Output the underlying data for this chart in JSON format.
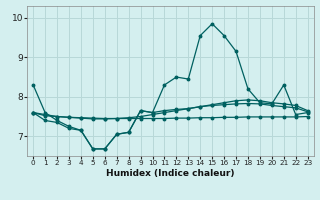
{
  "xlabel": "Humidex (Indice chaleur)",
  "bg_color": "#d4efef",
  "line_color": "#006060",
  "grid_color": "#b8d8d8",
  "xlim": [
    -0.5,
    23.5
  ],
  "ylim": [
    6.5,
    10.3
  ],
  "yticks": [
    7,
    8,
    9,
    10
  ],
  "xticks": [
    0,
    1,
    2,
    3,
    4,
    5,
    6,
    7,
    8,
    9,
    10,
    11,
    12,
    13,
    14,
    15,
    16,
    17,
    18,
    19,
    20,
    21,
    22,
    23
  ],
  "series": [
    {
      "x": [
        0,
        1,
        2,
        3,
        4,
        5,
        6,
        7,
        8,
        9,
        10,
        11,
        12,
        13,
        14,
        15,
        16,
        17,
        18,
        19,
        20,
        21,
        22,
        23
      ],
      "y": [
        8.3,
        7.6,
        7.4,
        7.25,
        7.15,
        6.68,
        6.68,
        7.05,
        7.1,
        7.65,
        7.6,
        8.3,
        8.5,
        8.45,
        9.55,
        9.85,
        9.55,
        9.15,
        8.2,
        7.85,
        7.82,
        8.3,
        7.55,
        7.6
      ]
    },
    {
      "x": [
        0,
        1,
        2,
        3,
        4,
        5,
        6,
        7,
        8,
        9,
        10,
        11,
        12,
        13,
        14,
        15,
        16,
        17,
        18,
        19,
        20,
        21,
        22,
        23
      ],
      "y": [
        7.6,
        7.55,
        7.5,
        7.48,
        7.46,
        7.44,
        7.44,
        7.45,
        7.47,
        7.5,
        7.55,
        7.6,
        7.65,
        7.7,
        7.75,
        7.8,
        7.85,
        7.9,
        7.92,
        7.9,
        7.85,
        7.82,
        7.78,
        7.65
      ]
    },
    {
      "x": [
        0,
        1,
        2,
        3,
        4,
        5,
        6,
        7,
        8,
        9,
        10,
        11,
        12,
        13,
        14,
        15,
        16,
        17,
        18,
        19,
        20,
        21,
        22,
        23
      ],
      "y": [
        7.6,
        7.52,
        7.5,
        7.48,
        7.47,
        7.46,
        7.45,
        7.45,
        7.45,
        7.45,
        7.45,
        7.45,
        7.46,
        7.46,
        7.47,
        7.47,
        7.48,
        7.48,
        7.49,
        7.49,
        7.49,
        7.49,
        7.49,
        7.5
      ]
    },
    {
      "x": [
        0,
        1,
        2,
        3,
        4,
        5,
        6,
        7,
        8,
        9,
        10,
        11,
        12,
        13,
        14,
        15,
        16,
        17,
        18,
        19,
        20,
        21,
        22,
        23
      ],
      "y": [
        7.6,
        7.4,
        7.35,
        7.2,
        7.15,
        6.68,
        6.68,
        7.05,
        7.1,
        7.65,
        7.6,
        7.65,
        7.68,
        7.7,
        7.75,
        7.78,
        7.8,
        7.82,
        7.83,
        7.82,
        7.78,
        7.75,
        7.72,
        7.62
      ]
    }
  ]
}
